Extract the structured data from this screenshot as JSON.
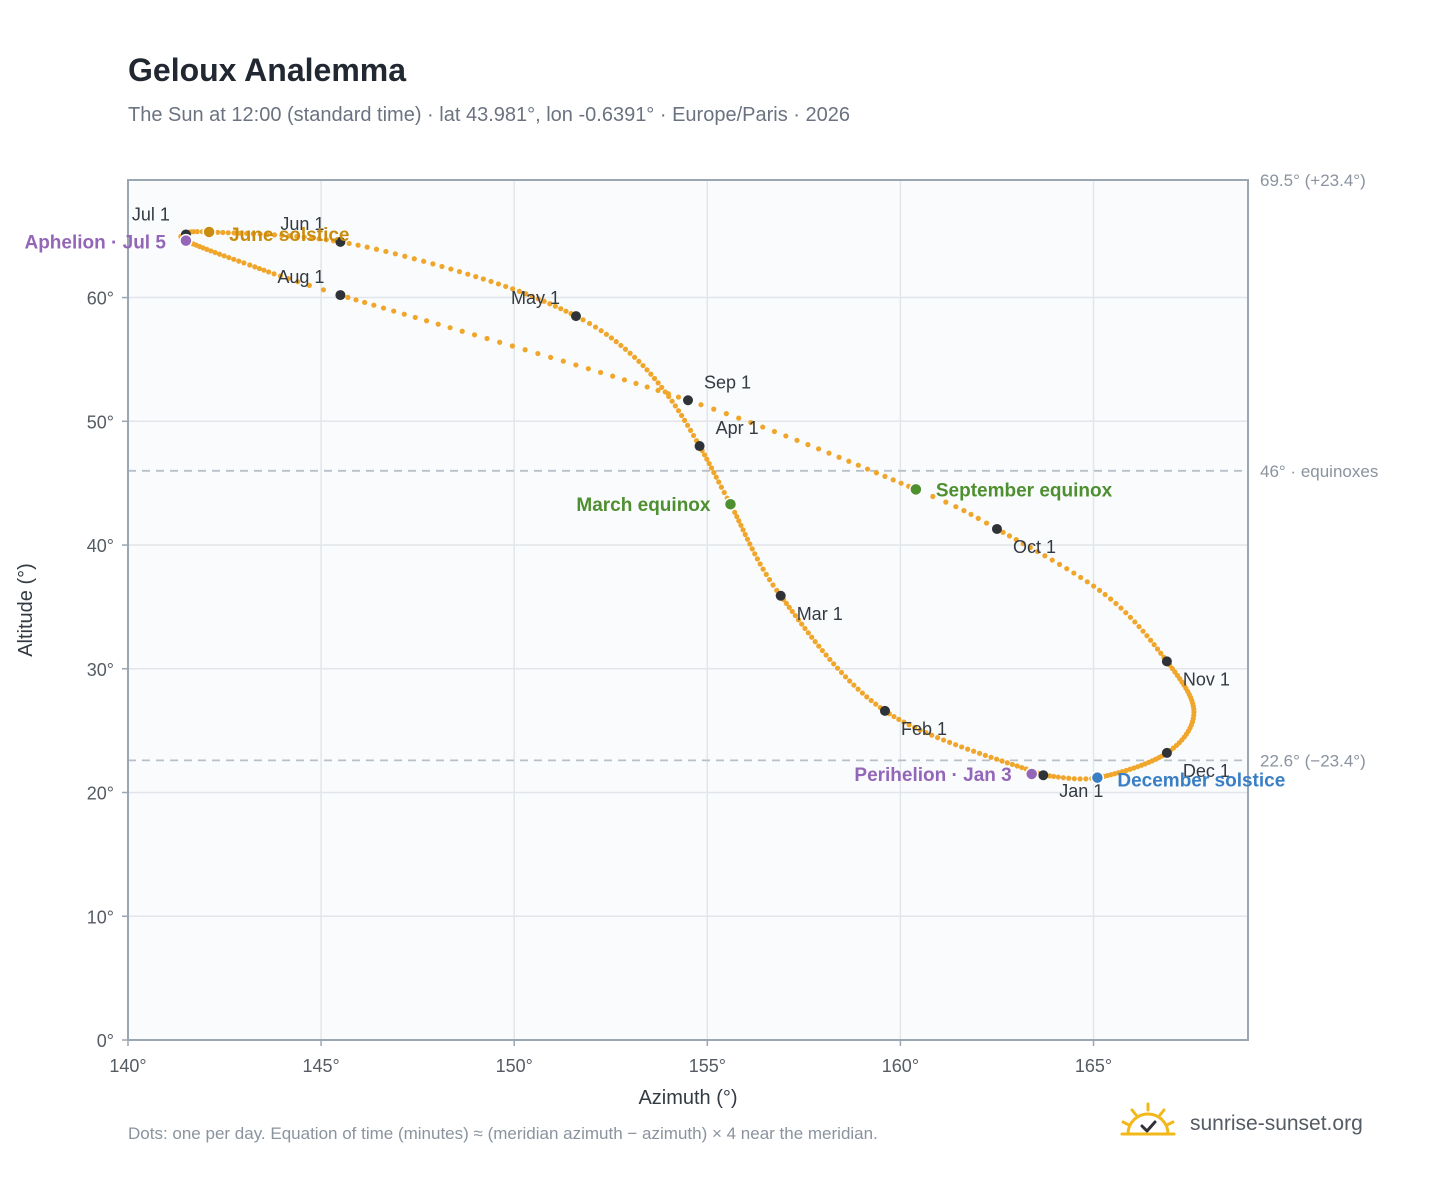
{
  "title": "Geloux Analemma",
  "subtitle": "The Sun at 12:00 (standard time) · lat 43.981°, lon -0.6391° · Europe/Paris · 2026",
  "footnote": "Dots: one per day. Equation of time (minutes) ≈ (meridian azimuth − azimuth) × 4 near the meridian.",
  "brand": {
    "text": "sunrise-sunset.org",
    "icon": "sun-logo-icon",
    "color": "#f2b81a"
  },
  "colors": {
    "curve": "#f0a62a",
    "month_marker": "#2f3338",
    "equinox": "#4e8f2f",
    "june_solstice": "#c98c0f",
    "december_solstice": "#3a7fc4",
    "apsis": "#9466b8",
    "plot_bg": "#f9fbfd",
    "grid": "#e2e6ea",
    "frame": "#9aa6b2",
    "reference": "#b8c0c8"
  },
  "chart_data": {
    "type": "scatter",
    "title": "Geloux Analemma",
    "xlabel": "Azimuth (°)",
    "ylabel": "Altitude (°)",
    "xlim": [
      140,
      169
    ],
    "ylim": [
      0,
      69.5
    ],
    "xticks": [
      "140°",
      "145°",
      "150°",
      "155°",
      "160°",
      "165°"
    ],
    "yticks": [
      "0°",
      "10°",
      "20°",
      "30°",
      "40°",
      "50°",
      "60°"
    ],
    "grid": true,
    "reference_lines": [
      {
        "altitude": 69.5,
        "label": "69.5° (+23.4°)"
      },
      {
        "altitude": 46.0,
        "label": "46° · equinoxes"
      },
      {
        "altitude": 22.6,
        "label": "22.6° (−23.4°)"
      }
    ],
    "month_markers": [
      {
        "label": "Jan 1",
        "azimuth": 163.7,
        "altitude": 21.4
      },
      {
        "label": "Feb 1",
        "azimuth": 159.6,
        "altitude": 26.6
      },
      {
        "label": "Mar 1",
        "azimuth": 156.9,
        "altitude": 35.9
      },
      {
        "label": "Apr 1",
        "azimuth": 154.8,
        "altitude": 48.0
      },
      {
        "label": "May 1",
        "azimuth": 151.6,
        "altitude": 58.5
      },
      {
        "label": "Jun 1",
        "azimuth": 145.5,
        "altitude": 64.5
      },
      {
        "label": "Jul 1",
        "azimuth": 141.5,
        "altitude": 65.1
      },
      {
        "label": "Aug 1",
        "azimuth": 145.5,
        "altitude": 60.2
      },
      {
        "label": "Sep 1",
        "azimuth": 154.5,
        "altitude": 51.7
      },
      {
        "label": "Oct 1",
        "azimuth": 162.5,
        "altitude": 41.3
      },
      {
        "label": "Nov 1",
        "azimuth": 166.9,
        "altitude": 30.6
      },
      {
        "label": "Dec 1",
        "azimuth": 166.9,
        "altitude": 23.2
      }
    ],
    "events": [
      {
        "label": "March equinox",
        "azimuth": 155.6,
        "altitude": 43.3,
        "kind": "equinox"
      },
      {
        "label": "June solstice",
        "azimuth": 142.1,
        "altitude": 65.3,
        "kind": "june_solstice"
      },
      {
        "label": "September equinox",
        "azimuth": 160.4,
        "altitude": 44.5,
        "kind": "equinox"
      },
      {
        "label": "December solstice",
        "azimuth": 165.1,
        "altitude": 21.2,
        "kind": "december_solstice"
      },
      {
        "label": "Perihelion · Jan 3",
        "azimuth": 163.4,
        "altitude": 21.5,
        "kind": "apsis"
      },
      {
        "label": "Aphelion · Jul 5",
        "azimuth": 141.5,
        "altitude": 64.6,
        "kind": "apsis"
      }
    ],
    "path_waypoints": [
      {
        "day": 0,
        "azimuth": 163.7,
        "altitude": 21.4
      },
      {
        "day": 31,
        "azimuth": 159.6,
        "altitude": 26.6
      },
      {
        "day": 59,
        "azimuth": 156.9,
        "altitude": 35.9
      },
      {
        "day": 78,
        "azimuth": 155.6,
        "altitude": 43.3
      },
      {
        "day": 90,
        "azimuth": 154.8,
        "altitude": 48.0
      },
      {
        "day": 100,
        "azimuth": 154.0,
        "altitude": 52.0
      },
      {
        "day": 110,
        "azimuth": 153.0,
        "altitude": 55.5
      },
      {
        "day": 120,
        "azimuth": 151.6,
        "altitude": 58.5
      },
      {
        "day": 135,
        "azimuth": 149.2,
        "altitude": 61.5
      },
      {
        "day": 151,
        "azimuth": 145.5,
        "altitude": 64.5
      },
      {
        "day": 171,
        "azimuth": 142.1,
        "altitude": 65.3
      },
      {
        "day": 181,
        "azimuth": 141.5,
        "altitude": 65.1
      },
      {
        "day": 185,
        "azimuth": 141.5,
        "altitude": 64.6
      },
      {
        "day": 200,
        "azimuth": 143.0,
        "altitude": 62.8
      },
      {
        "day": 212,
        "azimuth": 145.5,
        "altitude": 60.2
      },
      {
        "day": 243,
        "azimuth": 154.5,
        "altitude": 51.7
      },
      {
        "day": 265,
        "azimuth": 160.4,
        "altitude": 44.5
      },
      {
        "day": 273,
        "azimuth": 162.5,
        "altitude": 41.3
      },
      {
        "day": 289,
        "azimuth": 165.3,
        "altitude": 36.0
      },
      {
        "day": 304,
        "azimuth": 166.9,
        "altitude": 30.6
      },
      {
        "day": 320,
        "azimuth": 167.6,
        "altitude": 26.5
      },
      {
        "day": 334,
        "azimuth": 166.9,
        "altitude": 23.2
      },
      {
        "day": 354,
        "azimuth": 165.1,
        "altitude": 21.2
      },
      {
        "day": 365,
        "azimuth": 163.7,
        "altitude": 21.4
      }
    ]
  }
}
